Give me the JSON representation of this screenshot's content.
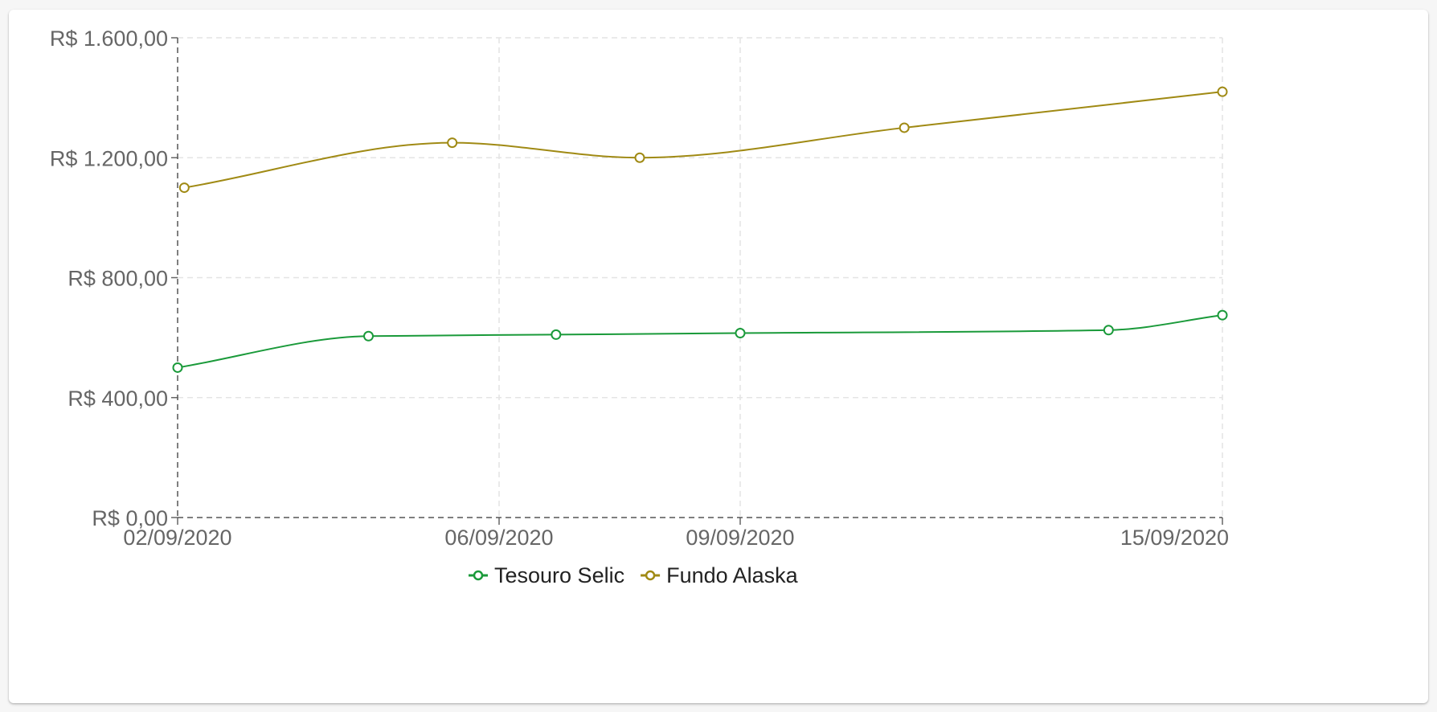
{
  "chart_data": {
    "type": "line",
    "title": "",
    "xlabel": "",
    "ylabel": "",
    "x_ticks": [
      "02/09/2020",
      "06/09/2020",
      "09/09/2020",
      "15/09/2020"
    ],
    "x_range": [
      "2020-09-02",
      "2020-09-15"
    ],
    "y_ticks": [
      "R$ 0,00",
      "R$ 400,00",
      "R$ 800,00",
      "R$ 1.200,00",
      "R$ 1.600,00"
    ],
    "ylim": [
      0,
      1600
    ],
    "grid": true,
    "legend_position": "bottom-center",
    "series": [
      {
        "name": "Tesouro Selic",
        "color": "#1a9a3a",
        "points": [
          {
            "x": "2020-09-02T00:00",
            "y": 500
          },
          {
            "x": "2020-09-04T09:00",
            "y": 605
          },
          {
            "x": "2020-09-06T17:00",
            "y": 610
          },
          {
            "x": "2020-09-09T00:00",
            "y": 615
          },
          {
            "x": "2020-09-13T14:00",
            "y": 625
          },
          {
            "x": "2020-09-15T00:00",
            "y": 675
          }
        ]
      },
      {
        "name": "Fundo Alaska",
        "color": "#a08a14",
        "points": [
          {
            "x": "2020-09-02T02:00",
            "y": 1100
          },
          {
            "x": "2020-09-05T10:00",
            "y": 1250
          },
          {
            "x": "2020-09-07T18:00",
            "y": 1200
          },
          {
            "x": "2020-09-11T01:00",
            "y": 1300
          },
          {
            "x": "2020-09-15T00:00",
            "y": 1420
          }
        ]
      }
    ]
  }
}
